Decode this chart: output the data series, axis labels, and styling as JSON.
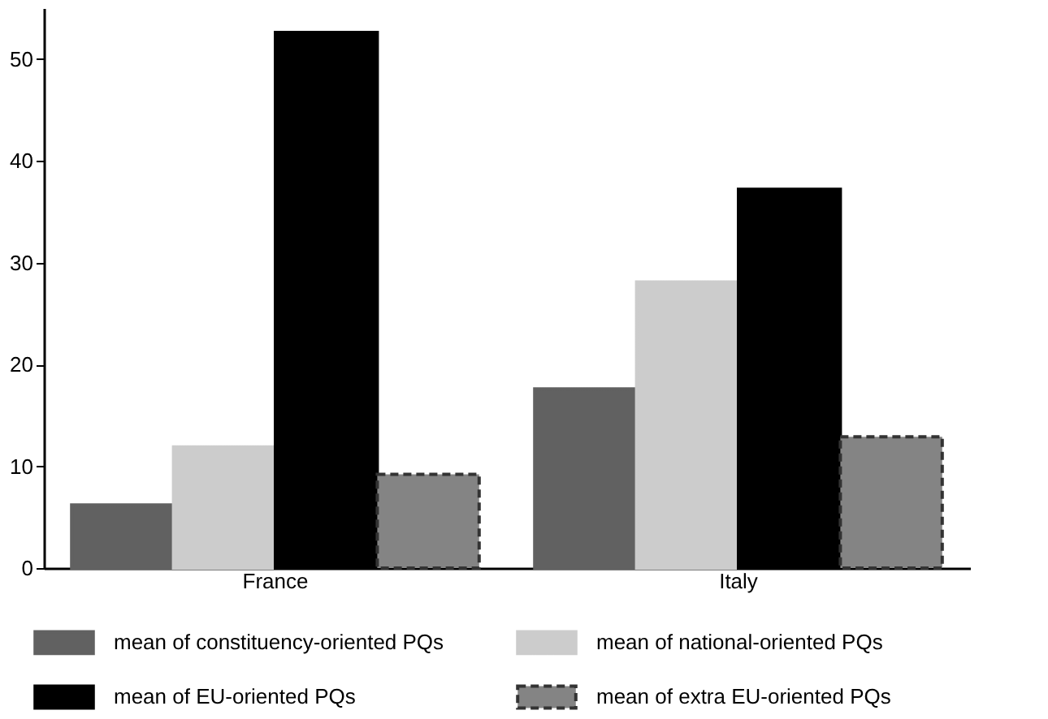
{
  "chart_data": {
    "type": "bar",
    "categories": [
      "France",
      "Italy"
    ],
    "series": [
      {
        "name": "mean of constituency-oriented PQs",
        "color": "#616161",
        "values": [
          6.2,
          17.6
        ]
      },
      {
        "name": "mean of national-oriented PQs",
        "color": "#cccccc",
        "values": [
          11.9,
          28.1
        ]
      },
      {
        "name": "mean of EU-oriented PQs",
        "color": "#000000",
        "values": [
          52.6,
          37.2
        ]
      },
      {
        "name": "mean of extra EU-oriented PQs",
        "color": "#848484",
        "values": [
          9.2,
          12.9
        ],
        "line_style": "dashed"
      }
    ],
    "ylim": [
      0,
      55
    ],
    "yticks": [
      0,
      10,
      20,
      30,
      40,
      50
    ],
    "grid": false,
    "legend": "bottom"
  }
}
